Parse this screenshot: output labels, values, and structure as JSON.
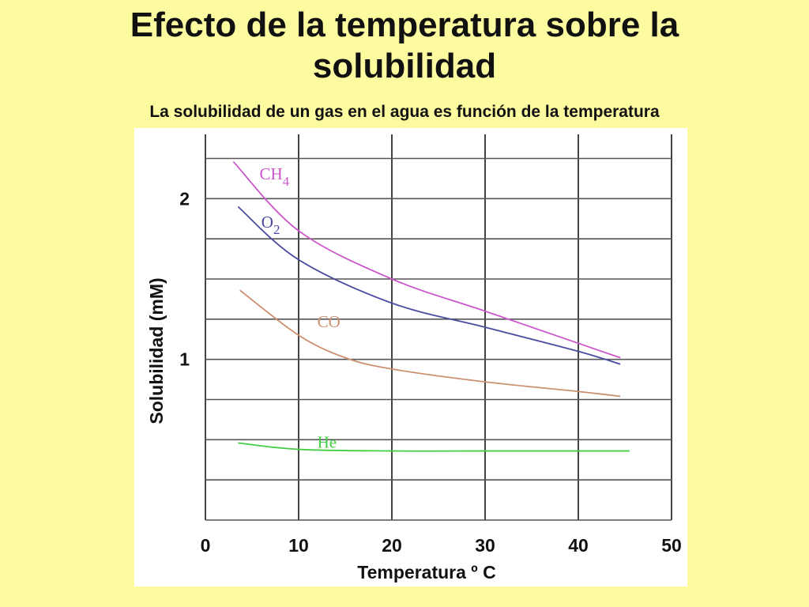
{
  "page": {
    "title": "Efecto de la temperatura sobre la solubilidad",
    "subtitle": "La solubilidad de un gas en el agua es función de la temperatura"
  },
  "chart_data": {
    "type": "line",
    "xlabel": "Temperatura º C",
    "ylabel": "Solubilidad (mM)",
    "xlim": [
      0,
      50
    ],
    "ylim": [
      0,
      2.4
    ],
    "x_ticks": [
      0,
      10,
      20,
      30,
      40,
      50
    ],
    "y_ticks": [
      1,
      2
    ],
    "grid": true,
    "grid_step_x": 10,
    "grid_step_y": 0.25,
    "series": [
      {
        "name": "CH4",
        "label_main": "CH",
        "label_sub": "4",
        "label_at": [
          5.8,
          2.12
        ],
        "color": "#cc55cc",
        "x": [
          3,
          10,
          20,
          30,
          40,
          44.5
        ],
        "y": [
          2.23,
          1.8,
          1.5,
          1.3,
          1.1,
          1.01
        ]
      },
      {
        "name": "O2",
        "label_main": "O",
        "label_sub": "2",
        "label_at": [
          6,
          1.82
        ],
        "color": "#4a4aa0",
        "x": [
          3.5,
          10,
          20,
          30,
          40,
          44.5
        ],
        "y": [
          1.95,
          1.62,
          1.35,
          1.2,
          1.05,
          0.97
        ]
      },
      {
        "name": "CO",
        "label_main": "CO",
        "label_sub": "",
        "label_at": [
          12,
          1.2
        ],
        "color": "#cc9070",
        "x": [
          3.7,
          10,
          15,
          20,
          30,
          40,
          44.5
        ],
        "y": [
          1.43,
          1.15,
          1.01,
          0.94,
          0.86,
          0.8,
          0.77
        ]
      },
      {
        "name": "He",
        "label_main": "He",
        "label_sub": "",
        "label_at": [
          12,
          0.45
        ],
        "color": "#44cc44",
        "x": [
          3.5,
          10,
          20,
          30,
          40,
          45.5
        ],
        "y": [
          0.48,
          0.44,
          0.43,
          0.43,
          0.43,
          0.43
        ]
      }
    ]
  }
}
